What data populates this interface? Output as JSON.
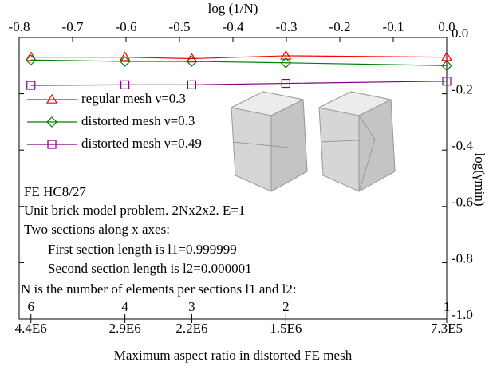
{
  "chart_data": {
    "type": "line",
    "title": "log (1/N)",
    "y_label": "log(γmin)",
    "x_label": "Maximum aspect ratio in distorted FE mesh",
    "xlim": [
      -0.8,
      0.0
    ],
    "xticks": [
      -0.8,
      -0.7,
      -0.6,
      -0.5,
      -0.4,
      -0.3,
      -0.2,
      -0.1,
      {
        "value": 0.0,
        "label": "0.0"
      }
    ],
    "ylim": [
      -1.0,
      0.0
    ],
    "yticks": [
      {
        "value": 0.0,
        "label": "0.0"
      },
      -0.2,
      -0.4,
      -0.6,
      -0.8,
      {
        "value": -1.0,
        "label": "-1.0"
      }
    ],
    "n_ticks": [
      {
        "value": -0.778,
        "label": "6"
      },
      {
        "value": -0.602,
        "label": "4"
      },
      {
        "value": -0.477,
        "label": "3"
      },
      {
        "value": -0.301,
        "label": "2"
      },
      {
        "value": 0.0,
        "label": "1"
      }
    ],
    "aspect_ticks": [
      {
        "value": -0.778,
        "label": "4.4E6"
      },
      {
        "value": -0.602,
        "label": "2.9E6"
      },
      {
        "value": -0.477,
        "label": "2.2E6"
      },
      {
        "value": -0.301,
        "label": "1.5E6"
      },
      {
        "value": 0.0,
        "label": "7.3E5"
      }
    ],
    "x": [
      -0.778,
      -0.602,
      -0.477,
      -0.301,
      0.0
    ],
    "series": [
      {
        "name": "regular mesh ν=0.3",
        "color": "#ff0000",
        "marker": "triangle",
        "values": [
          -0.07,
          -0.07,
          -0.075,
          -0.065,
          -0.07
        ]
      },
      {
        "name": "distorted mesh ν=0.3",
        "color": "#008000",
        "marker": "diamond",
        "values": [
          -0.08,
          -0.085,
          -0.085,
          -0.09,
          -0.1
        ]
      },
      {
        "name": "distorted mesh ν=0.49",
        "color": "#800080",
        "marker": "square",
        "values": [
          -0.17,
          -0.168,
          -0.168,
          -0.163,
          -0.155
        ]
      }
    ],
    "annotations": [
      "FE HC8/27",
      "Unit brick model problem. 2Nx2x2. E=1",
      "Two sections along x axes:",
      "First section length is l1=0.999999",
      "Second section length is l2=0.000001",
      "N is the number of elements per sections l1 and l2:"
    ]
  }
}
